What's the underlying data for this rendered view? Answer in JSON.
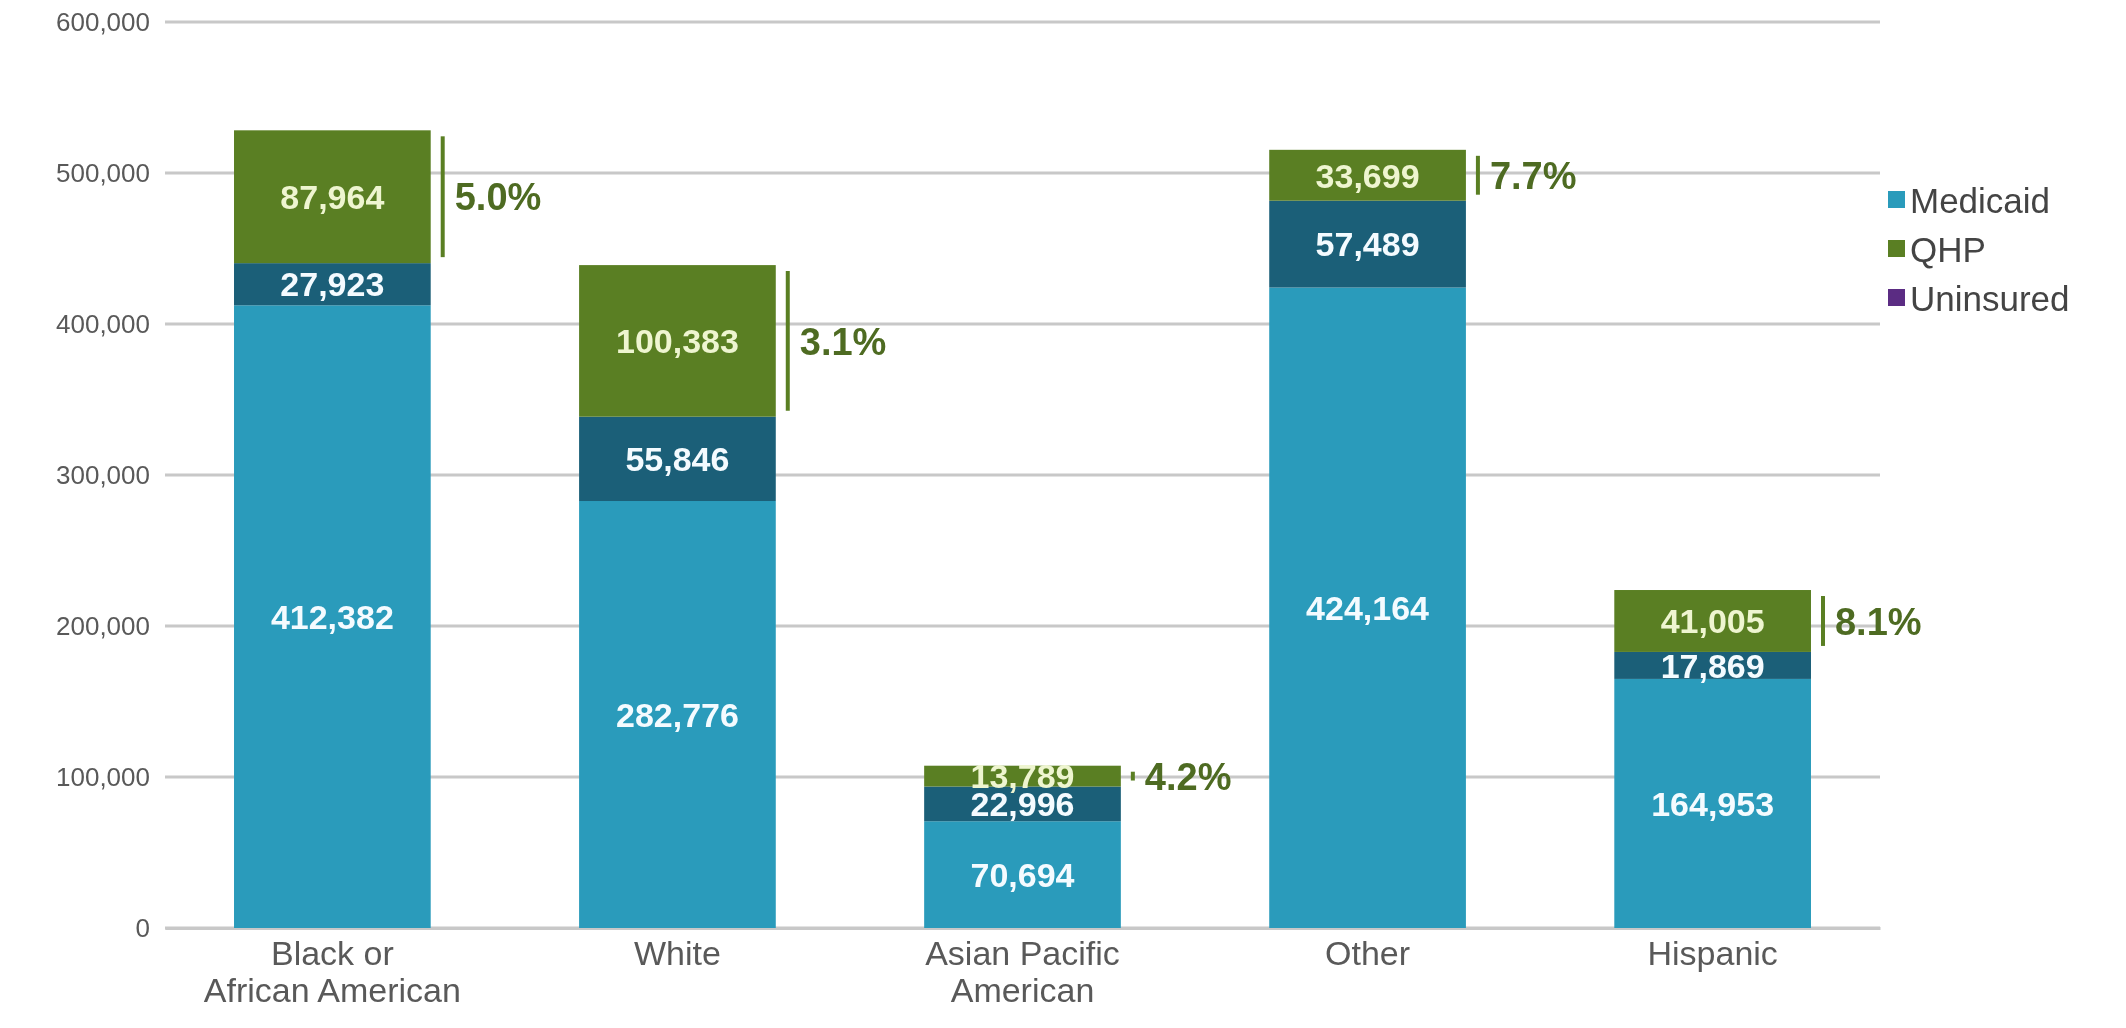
{
  "chart_data": {
    "type": "bar",
    "stacked": true,
    "categories": [
      "Black or African American",
      "White",
      "Asian Pacific American",
      "Other",
      "Hispanic"
    ],
    "series": [
      {
        "name": "Medicaid",
        "color": "#2a9bbb",
        "values": [
          412382,
          282776,
          70694,
          424164,
          164953
        ],
        "value_labels": [
          "412,382",
          "282,776",
          "70,694",
          "424,164",
          "164,953"
        ]
      },
      {
        "color": "#1b5f78",
        "values": [
          27923,
          55846,
          22996,
          57489,
          17869
        ],
        "value_labels": [
          "27,923",
          "55,846",
          "22,996",
          "57,489",
          "17,869"
        ]
      },
      {
        "name": "QHP",
        "color": "#5a7f23",
        "values": [
          87964,
          100383,
          13789,
          33699,
          41005
        ],
        "value_labels": [
          "87,964",
          "100,383",
          "13,789",
          "33,699",
          "41,005"
        ]
      },
      {
        "name": "Uninsured",
        "color": "#5b2c83",
        "values": [
          null,
          null,
          null,
          null,
          null
        ]
      }
    ],
    "ylim": [
      0,
      600000
    ],
    "yticks": [
      {
        "value": 0,
        "label": "0"
      },
      {
        "value": 100000,
        "label": "100,000"
      },
      {
        "value": 200000,
        "label": "200,000"
      },
      {
        "value": 300000,
        "label": "300,000"
      },
      {
        "value": 400000,
        "label": "400,000"
      },
      {
        "value": 500000,
        "label": "500,000"
      },
      {
        "value": 600000,
        "label": "600,000"
      }
    ],
    "grid": "y",
    "legend": "right",
    "annotations": [
      "5.0%",
      "3.1%",
      "4.2%",
      "7.7%",
      "8.1%"
    ]
  }
}
